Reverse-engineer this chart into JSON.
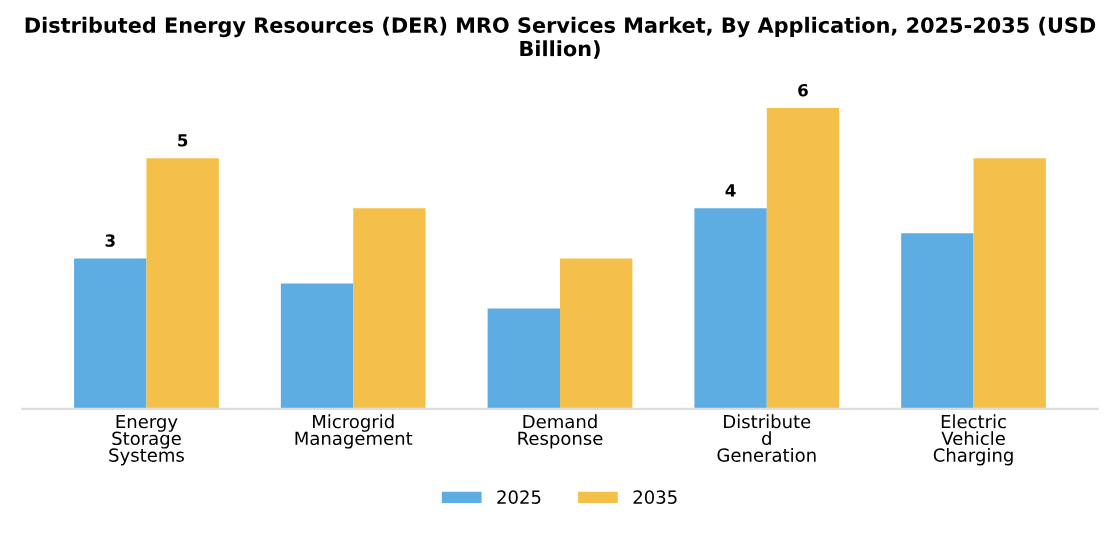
{
  "chart_data": {
    "type": "bar",
    "title": "Distributed Energy Resources (DER) MRO Services Market, By Application, 2025-2035 (USD Billion)",
    "categories": [
      "Energy\nStorage\nSystems",
      "Microgrid\nManagement",
      "Demand\nResponse",
      "Distribute\nd\nGeneration",
      "Electric\nVehicle\nCharging"
    ],
    "series": [
      {
        "name": "2025",
        "color": "#5dade2",
        "values": [
          3,
          2.5,
          2,
          4,
          3.5
        ],
        "value_labels": [
          "3",
          null,
          null,
          "4",
          null
        ]
      },
      {
        "name": "2035",
        "color": "#f5c04a",
        "values": [
          5,
          4,
          3,
          6,
          5
        ],
        "value_labels": [
          "5",
          null,
          null,
          "6",
          null
        ]
      }
    ],
    "legend": "bottom",
    "grid": false
  }
}
